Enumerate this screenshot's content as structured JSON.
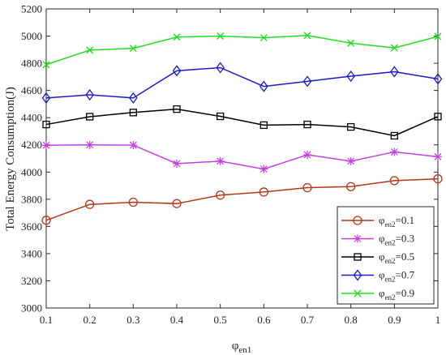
{
  "chart_data": {
    "type": "line",
    "xlabel": "φ",
    "xlabel_sub": "en1",
    "ylabel": "Total Energy Consumption(J)",
    "x": [
      0.1,
      0.2,
      0.3,
      0.4,
      0.5,
      0.6,
      0.7,
      0.8,
      0.9,
      1
    ],
    "x_tick_labels": [
      "0.1",
      "0.2",
      "0.3",
      "0.4",
      "0.5",
      "0.6",
      "0.7",
      "0.8",
      "0.9",
      "1"
    ],
    "xlim": [
      0.1,
      1
    ],
    "ylim": [
      3000,
      5200
    ],
    "y_ticks": [
      3000,
      3200,
      3400,
      3600,
      3800,
      4000,
      4200,
      4400,
      4600,
      4800,
      5000,
      5200
    ],
    "y_tick_labels": [
      "3000",
      "3200",
      "3400",
      "3600",
      "3800",
      "4000",
      "4200",
      "4400",
      "4600",
      "4800",
      "5000",
      "5200"
    ],
    "grid": false,
    "legend_position": "bottom-right",
    "series": [
      {
        "name": "φ",
        "name_sub": "en2",
        "name_value": "=0.1",
        "color": "#b5361b",
        "marker": "circle",
        "values": [
          3645,
          3762,
          3778,
          3768,
          3830,
          3853,
          3885,
          3893,
          3937,
          3950
        ]
      },
      {
        "name": "φ",
        "name_sub": "en2",
        "name_value": "=0.3",
        "color": "#c43ee6",
        "marker": "star",
        "values": [
          4197,
          4200,
          4198,
          4062,
          4080,
          4022,
          4127,
          4080,
          4148,
          4113
        ]
      },
      {
        "name": "φ",
        "name_sub": "en2",
        "name_value": "=0.5",
        "color": "#000000",
        "marker": "square",
        "values": [
          4350,
          4407,
          4438,
          4463,
          4410,
          4345,
          4350,
          4332,
          4267,
          4408
        ]
      },
      {
        "name": "φ",
        "name_sub": "en2",
        "name_value": "=0.7",
        "color": "#1a1acc",
        "marker": "diamond",
        "values": [
          4545,
          4568,
          4545,
          4745,
          4768,
          4630,
          4667,
          4705,
          4738,
          4685
        ]
      },
      {
        "name": "φ",
        "name_sub": "en2",
        "name_value": "=0.9",
        "color": "#22dd22",
        "marker": "x",
        "values": [
          4790,
          4897,
          4910,
          4993,
          5000,
          4988,
          5005,
          4948,
          4913,
          4997
        ]
      }
    ]
  }
}
